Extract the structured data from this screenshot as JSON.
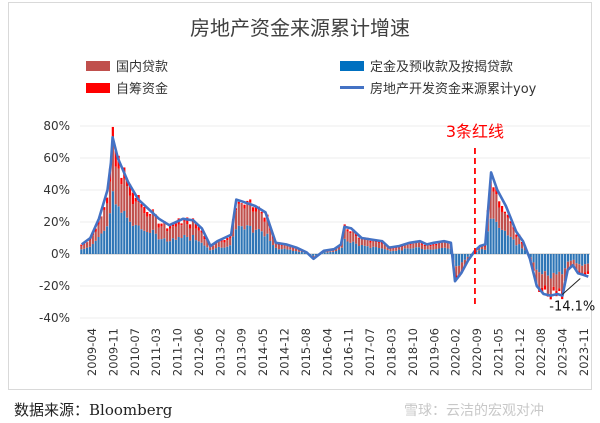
{
  "chart_data": {
    "type": "bar",
    "title": "房地产资金来源累计增速",
    "x_ticks": [
      "2009-04",
      "2009-11",
      "2010-07",
      "2011-03",
      "2011-10",
      "2012-06",
      "2013-02",
      "2013-09",
      "2014-05",
      "2014-12",
      "2015-08",
      "2016-04",
      "2016-11",
      "2017-07",
      "2018-03",
      "2018-10",
      "2019-06",
      "2020-02",
      "2020-09",
      "2021-05",
      "2021-12",
      "2022-08",
      "2023-04",
      "2023-11"
    ],
    "y_ticks": [
      "80%",
      "60%",
      "40%",
      "20%",
      "0%",
      "-20%",
      "-40%"
    ],
    "ylim": [
      -40,
      80
    ],
    "y_unit": "%",
    "legend": {
      "domestic_loans": "国内贷款",
      "deposits_prepay": "定金及预收款及按揭贷款",
      "self_raised": "自筹资金",
      "total_yoy": "房地产开发资金来源累计yoy"
    },
    "colors": {
      "domestic_loans": "#C0504D",
      "deposits_prepay": "#2E75B6",
      "self_raised": "#FF0000",
      "total_yoy": "#4472C4"
    },
    "total_yoy_points": [
      [
        2009.25,
        6
      ],
      [
        2009.5,
        10
      ],
      [
        2009.75,
        22
      ],
      [
        2010.0,
        40
      ],
      [
        2010.1,
        57
      ],
      [
        2010.15,
        73
      ],
      [
        2010.3,
        60
      ],
      [
        2010.6,
        45
      ],
      [
        2010.9,
        34
      ],
      [
        2011.2,
        28
      ],
      [
        2011.5,
        22
      ],
      [
        2011.8,
        18
      ],
      [
        2012.2,
        22
      ],
      [
        2012.5,
        21
      ],
      [
        2012.75,
        16
      ],
      [
        2013.0,
        5
      ],
      [
        2013.2,
        8
      ],
      [
        2013.4,
        10
      ],
      [
        2013.6,
        12
      ],
      [
        2013.75,
        34
      ],
      [
        2013.9,
        33
      ],
      [
        2014.3,
        30
      ],
      [
        2014.6,
        26
      ],
      [
        2014.9,
        7
      ],
      [
        2015.2,
        6
      ],
      [
        2015.5,
        4
      ],
      [
        2015.8,
        1
      ],
      [
        2016.0,
        -3
      ],
      [
        2016.3,
        2
      ],
      [
        2016.6,
        3
      ],
      [
        2016.8,
        6
      ],
      [
        2016.9,
        17
      ],
      [
        2017.1,
        16
      ],
      [
        2017.4,
        10
      ],
      [
        2017.7,
        9
      ],
      [
        2018.0,
        8
      ],
      [
        2018.2,
        4
      ],
      [
        2018.5,
        5
      ],
      [
        2018.8,
        7
      ],
      [
        2019.1,
        8
      ],
      [
        2019.3,
        6
      ],
      [
        2019.5,
        7
      ],
      [
        2019.8,
        8
      ],
      [
        2020.0,
        7
      ],
      [
        2020.12,
        -17
      ],
      [
        2020.3,
        -12
      ],
      [
        2020.5,
        -4
      ],
      [
        2020.7,
        2
      ],
      [
        2020.85,
        5
      ],
      [
        2021.0,
        6
      ],
      [
        2021.17,
        51
      ],
      [
        2021.35,
        40
      ],
      [
        2021.6,
        30
      ],
      [
        2021.9,
        14
      ],
      [
        2022.1,
        8
      ],
      [
        2022.3,
        -3
      ],
      [
        2022.5,
        -20
      ],
      [
        2022.7,
        -25
      ],
      [
        2022.9,
        -26
      ],
      [
        2023.1,
        -25
      ],
      [
        2023.25,
        -26
      ],
      [
        2023.4,
        -10
      ],
      [
        2023.55,
        -7
      ],
      [
        2023.7,
        -12
      ],
      [
        2023.85,
        -13
      ],
      [
        2024.0,
        -14.1
      ]
    ],
    "annotation_policy": {
      "label": "3条红线",
      "x": 2020.7
    },
    "annotation_last": {
      "label": "-14.1%",
      "value": -14.1
    },
    "xlim": [
      2009.2,
      2024.05
    ]
  },
  "footer": {
    "source": "数据来源：Bloomberg",
    "watermark": "雪球：云洁的宏观对冲"
  }
}
